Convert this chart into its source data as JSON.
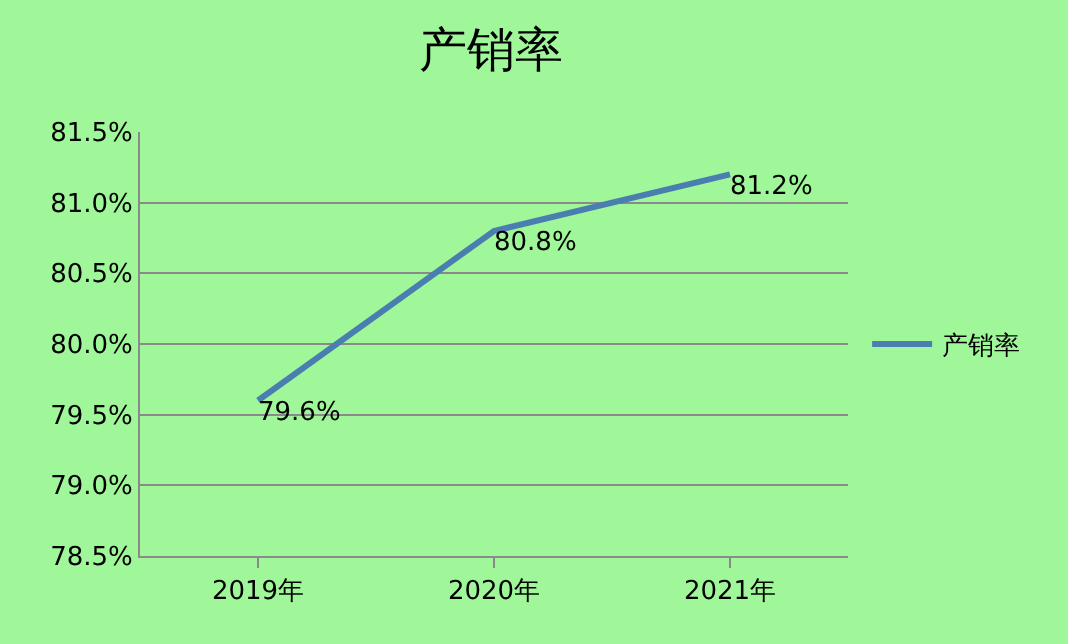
{
  "chart_data": {
    "type": "line",
    "title": "产销率",
    "categories": [
      "2019年",
      "2020年",
      "2021年"
    ],
    "series": [
      {
        "name": "产销率",
        "color": "#4a7eb0",
        "values": [
          79.6,
          80.8,
          81.2
        ],
        "value_labels": [
          "79.6%",
          "80.8%",
          "81.2%"
        ]
      }
    ],
    "ylim": [
      78.5,
      81.5
    ],
    "yticks": [
      {
        "value": 78.5,
        "label": "78.5%"
      },
      {
        "value": 79.0,
        "label": "79.0%"
      },
      {
        "value": 79.5,
        "label": "79.5%"
      },
      {
        "value": 80.0,
        "label": "80.0%"
      },
      {
        "value": 80.5,
        "label": "80.5%"
      },
      {
        "value": 81.0,
        "label": "81.0%"
      },
      {
        "value": 81.5,
        "label": "81.5%"
      }
    ],
    "grid": "y",
    "legend": "right",
    "marker": "none",
    "line_style": "solid"
  }
}
